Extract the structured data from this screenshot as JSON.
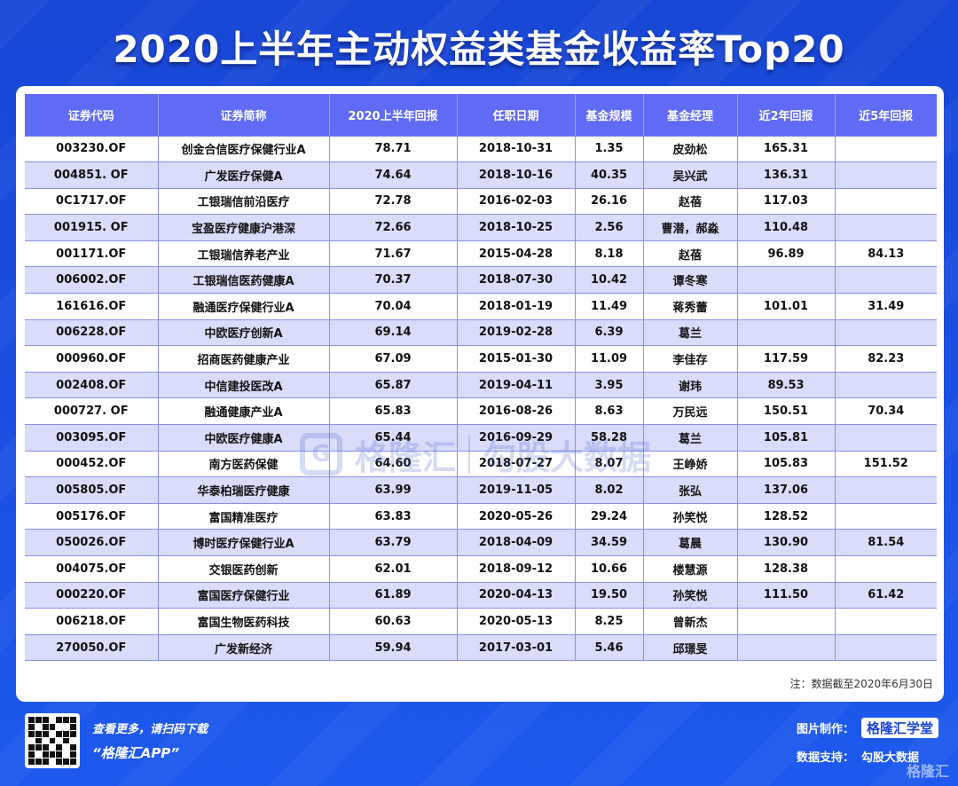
{
  "title": "2020上半年主动权益类基金收益率Top20",
  "columns": [
    "证券代码",
    "证券简称",
    "2020上半年回报",
    "任职日期",
    "基金规模",
    "基金经理",
    "近2年回报",
    "近5年回报"
  ],
  "rows": [
    [
      "003230.OF",
      "创金合信医疗保健行业A",
      "78.71",
      "2018-10-31",
      "1.35",
      "皮劲松",
      "165.31",
      ""
    ],
    [
      "004851. OF",
      "广发医疗保健A",
      "74.64",
      "2018-10-16",
      "40.35",
      "吴兴武",
      "136.31",
      ""
    ],
    [
      "0C1717.OF",
      "工银瑞信前沿医疗",
      "72.78",
      "2016-02-03",
      "26.16",
      "赵蓓",
      "117.03",
      ""
    ],
    [
      "001915. OF",
      "宝盈医疗健康沪港深",
      "72.66",
      "2018-10-25",
      "2.56",
      "曹潜，郝淼",
      "110.48",
      ""
    ],
    [
      "001171.OF",
      "工银瑞信养老产业",
      "71.67",
      "2015-04-28",
      "8.18",
      "赵蓓",
      "96.89",
      "84.13"
    ],
    [
      "006002.OF",
      "工银瑞信医药健康A",
      "70.37",
      "2018-07-30",
      "10.42",
      "谭冬寒",
      "",
      ""
    ],
    [
      "161616.OF",
      "融通医疗保健行业A",
      "70.04",
      "2018-01-19",
      "11.49",
      "蒋秀蕾",
      "101.01",
      "31.49"
    ],
    [
      "006228.OF",
      "中欧医疗创新A",
      "69.14",
      "2019-02-28",
      "6.39",
      "葛兰",
      "",
      ""
    ],
    [
      "000960.OF",
      "招商医药健康产业",
      "67.09",
      "2015-01-30",
      "11.09",
      "李佳存",
      "117.59",
      "82.23"
    ],
    [
      "002408.OF",
      "中信建投医改A",
      "65.87",
      "2019-04-11",
      "3.95",
      "谢玮",
      "89.53",
      ""
    ],
    [
      "000727. OF",
      "融通健康产业A",
      "65.83",
      "2016-08-26",
      "8.63",
      "万民远",
      "150.51",
      "70.34"
    ],
    [
      "003095.OF",
      "中欧医疗健康A",
      "65.44",
      "2016-09-29",
      "58.28",
      "葛兰",
      "105.81",
      ""
    ],
    [
      "000452.OF",
      "南方医药保健",
      "64.60",
      "2018-07-27",
      "8.07",
      "王峥娇",
      "105.83",
      "151.52"
    ],
    [
      "005805.OF",
      "华泰柏瑞医疗健康",
      "63.99",
      "2019-11-05",
      "8.02",
      "张弘",
      "137.06",
      ""
    ],
    [
      "005176.OF",
      "富国精准医疗",
      "63.83",
      "2020-05-26",
      "29.24",
      "孙笑悦",
      "128.52",
      ""
    ],
    [
      "050026.OF",
      "博时医疗保健行业A",
      "63.79",
      "2018-04-09",
      "34.59",
      "葛晨",
      "130.90",
      "81.54"
    ],
    [
      "004075.OF",
      "交银医药创新",
      "62.01",
      "2018-09-12",
      "10.66",
      "楼慧源",
      "128.38",
      ""
    ],
    [
      "000220.OF",
      "富国医疗保健行业",
      "61.89",
      "2020-04-13",
      "19.50",
      "孙笑悦",
      "111.50",
      "61.42"
    ],
    [
      "006218.OF",
      "富国生物医药科技",
      "60.63",
      "2020-05-13",
      "8.25",
      "曾新杰",
      "",
      ""
    ],
    [
      "270050.OF",
      "广发新经济",
      "59.94",
      "2017-03-01",
      "5.46",
      "邱璟旻",
      "",
      ""
    ]
  ],
  "note": "注：数据截至2020年6月30日",
  "watermark": {
    "brand": "格隆汇",
    "data": "勾股大数据",
    "logo_icon": "G"
  },
  "footer": {
    "line1": "查看更多，请扫码下载",
    "line2": "“格隆汇APP”",
    "made_by_label": "图片制作：",
    "made_by_brand": "格隆汇学堂",
    "data_support_label": "数据支持：",
    "data_support_value": "勾股大数据",
    "corner_mark": "格隆汇"
  },
  "colors": {
    "header": "#5f6af5",
    "row_alt": "#d9dcfb",
    "background": "#1a4fe0"
  }
}
